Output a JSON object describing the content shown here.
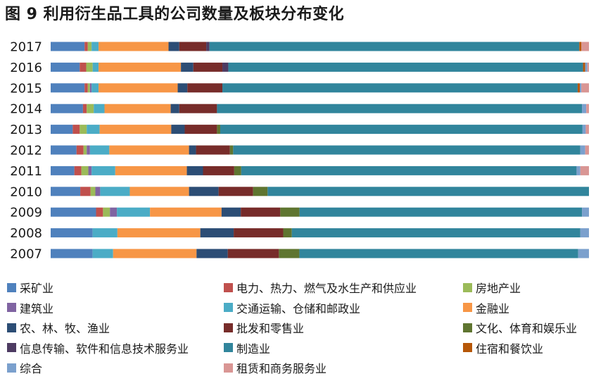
{
  "chart_data": {
    "type": "bar",
    "orientation": "horizontal",
    "stacked": "percent",
    "title": "图 9  利用衍生品工具的公司数量及板块分布变化",
    "xlabel": "",
    "ylabel": "",
    "xlim": [
      0,
      100
    ],
    "grid": false,
    "legend_position": "bottom",
    "categories": [
      "2017",
      "2016",
      "2015",
      "2014",
      "2013",
      "2012",
      "2011",
      "2010",
      "2009",
      "2008",
      "2007"
    ],
    "series": [
      {
        "name": "采矿业",
        "color": "#4f81bd",
        "values": [
          6.3,
          5.4,
          6.3,
          6.0,
          4.1,
          4.8,
          4.4,
          5.5,
          8.5,
          7.8,
          7.8
        ]
      },
      {
        "name": "电力、热力、燃气及水生产和供应业",
        "color": "#c0504d",
        "values": [
          0.6,
          1.2,
          0.6,
          0.7,
          1.3,
          1.3,
          1.3,
          1.9,
          1.3,
          0,
          0
        ]
      },
      {
        "name": "房地产业",
        "color": "#9bbb59",
        "values": [
          0.7,
          1.2,
          0.4,
          1.3,
          1.3,
          0.6,
          1.3,
          0.9,
          1.3,
          0,
          0
        ]
      },
      {
        "name": "建筑业",
        "color": "#8064a2",
        "values": [
          0,
          0,
          0.3,
          0,
          0,
          0.6,
          0.6,
          0.9,
          1.3,
          0,
          0
        ]
      },
      {
        "name": "交通运输、仓储和邮政业",
        "color": "#4bacc6",
        "values": [
          1.3,
          1.1,
          1.3,
          2.0,
          2.4,
          3.6,
          4.4,
          5.5,
          6.2,
          4.6,
          3.8
        ]
      },
      {
        "name": "金融业",
        "color": "#f79646",
        "values": [
          13.0,
          15.3,
          14.7,
          12.3,
          13.3,
          14.8,
          13.3,
          11.0,
          13.4,
          15.4,
          15.5
        ]
      },
      {
        "name": "农、林、牧、渔业",
        "color": "#2c4d75",
        "values": [
          2.0,
          2.3,
          1.8,
          1.6,
          2.5,
          1.3,
          3.0,
          5.5,
          3.6,
          6.2,
          5.8
        ]
      },
      {
        "name": "批发和零售业",
        "color": "#772c2a",
        "values": [
          5.0,
          5.4,
          6.5,
          7.0,
          6.0,
          6.3,
          5.8,
          6.4,
          7.4,
          9.2,
          9.5
        ]
      },
      {
        "name": "文化、体育和娱乐业",
        "color": "#5f7530",
        "values": [
          0,
          0,
          0,
          0,
          0.6,
          0.6,
          1.3,
          2.7,
          3.6,
          1.6,
          3.8
        ]
      },
      {
        "name": "信息传输、软件和信息技术服务业",
        "color": "#4d3b62",
        "values": [
          0.6,
          1.1,
          0,
          0,
          0,
          0,
          0,
          0,
          0,
          0,
          0
        ]
      },
      {
        "name": "制造业",
        "color": "#31859c",
        "values": [
          68.7,
          65.9,
          66.0,
          67.8,
          67.3,
          64.5,
          62.3,
          59.7,
          52.9,
          53.6,
          51.8
        ]
      },
      {
        "name": "住宿和餐饮业",
        "color": "#b65708",
        "values": [
          0.4,
          0.4,
          0.4,
          0,
          0,
          0,
          0,
          0,
          0,
          0,
          0
        ]
      },
      {
        "name": "综合",
        "color": "#7ba0cd",
        "values": [
          0,
          0.4,
          0.3,
          0.8,
          0.6,
          0.9,
          0.7,
          0,
          1.3,
          1.6,
          2.0
        ]
      },
      {
        "name": "租赁和商务服务业",
        "color": "#d99694",
        "values": [
          1.4,
          0.3,
          1.4,
          0.5,
          0.6,
          0.7,
          1.6,
          0,
          0,
          0,
          0
        ]
      }
    ]
  }
}
